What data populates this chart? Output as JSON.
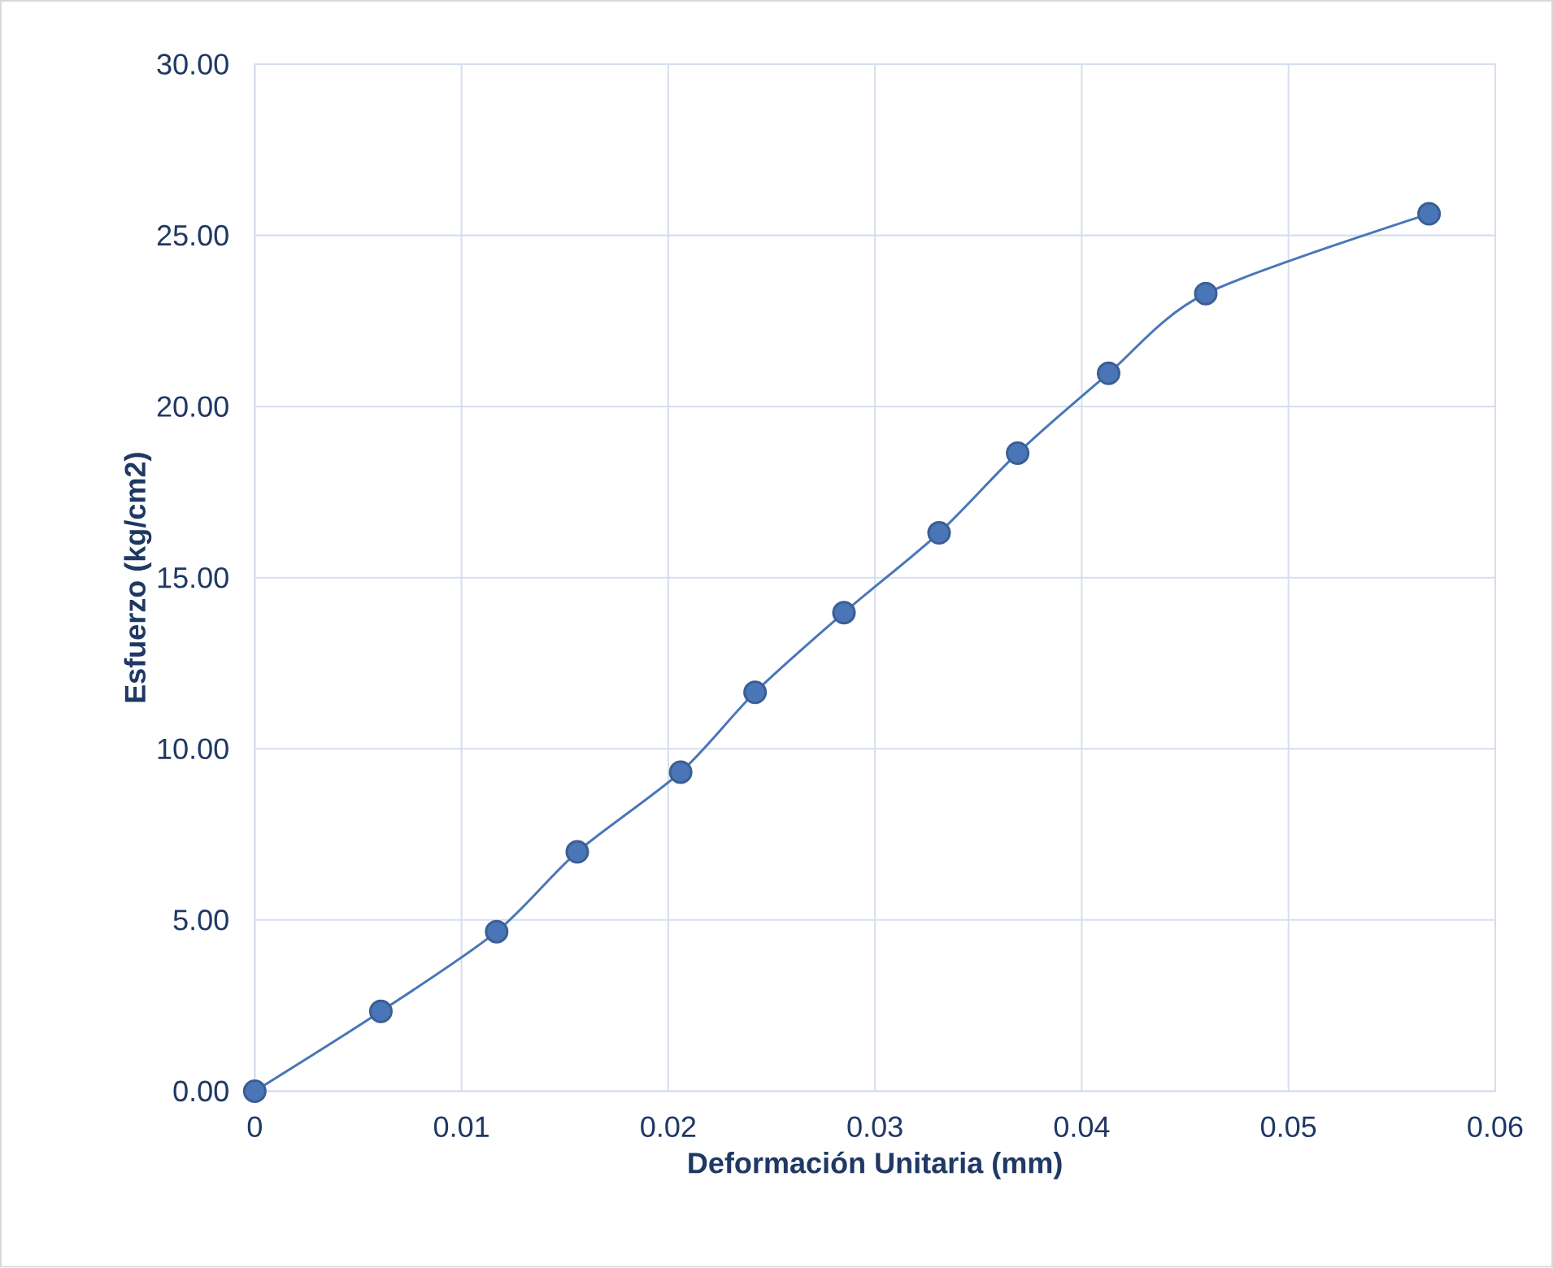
{
  "chart_data": {
    "type": "line",
    "xlabel": "Deformación Unitaria (mm)",
    "ylabel": "Esfuerzo (kg/cm2)",
    "x": [
      0,
      0.0061,
      0.0117,
      0.0156,
      0.0206,
      0.0242,
      0.0285,
      0.0331,
      0.0369,
      0.0413,
      0.046,
      0.0568
    ],
    "values": [
      0,
      2.33,
      4.66,
      6.99,
      9.32,
      11.65,
      13.98,
      16.31,
      18.64,
      20.97,
      23.3,
      25.63
    ],
    "color": "#4a76b8",
    "marker": "circle",
    "line_style": "solid",
    "grid": true,
    "xlim": [
      0,
      0.06
    ],
    "ylim": [
      0,
      30
    ],
    "xticks": [
      0,
      0.01,
      0.02,
      0.03,
      0.04,
      0.05,
      0.06
    ],
    "yticks": [
      {
        "value": 0,
        "label": "0.00"
      },
      {
        "value": 5,
        "label": "5.00"
      },
      {
        "value": 10,
        "label": "10.00"
      },
      {
        "value": 15,
        "label": "15.00"
      },
      {
        "value": 20,
        "label": "20.00"
      },
      {
        "value": 25,
        "label": "25.00"
      },
      {
        "value": 30,
        "label": "30.00"
      }
    ]
  }
}
